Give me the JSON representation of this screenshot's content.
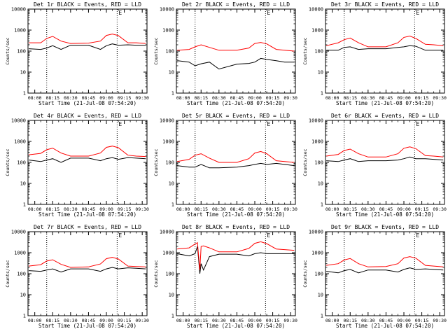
{
  "colors": {
    "events": "#000000",
    "lld": "#ff0000",
    "axes": "#000000",
    "background": "#ffffff"
  },
  "x_ticks": [
    "08:00",
    "08:15",
    "08:30",
    "08:45",
    "09:00",
    "09:15",
    "09:30"
  ],
  "x_label": "Start Time (21-Jul-08 07:54:20)",
  "y_label": "Counts/sec",
  "y_ticks": [
    "1",
    "10",
    "100",
    "1000",
    "10000"
  ],
  "chart_data": [
    {
      "type": "line",
      "title": "Det 1r BLACK = Events, RED = LLD",
      "corner_flag": "E",
      "xlim": [
        "07:54:20",
        "09:34:00"
      ],
      "ylim": [
        1,
        10000
      ],
      "yscale": "log",
      "markers": [
        "08:10",
        "09:09"
      ],
      "x": [
        "07:55",
        "08:05",
        "08:10",
        "08:15",
        "08:22",
        "08:30",
        "08:45",
        "08:55",
        "09:00",
        "09:05",
        "09:10",
        "09:18",
        "09:25",
        "09:33"
      ],
      "series": [
        {
          "name": "BLACK = Events",
          "values": [
            130,
            120,
            140,
            180,
            120,
            190,
            190,
            120,
            180,
            220,
            190,
            200,
            190,
            190
          ]
        },
        {
          "name": "RED = LLD",
          "values": [
            250,
            250,
            400,
            500,
            300,
            230,
            240,
            300,
            560,
            650,
            550,
            250,
            250,
            230
          ]
        }
      ]
    },
    {
      "type": "line",
      "title": "Det 2r BLACK = Events, RED = LLD",
      "corner_flag": "E",
      "xlim": [
        "07:54:20",
        "09:34:00"
      ],
      "ylim": [
        1,
        10000
      ],
      "yscale": "log",
      "markers": [
        "08:10",
        "09:09"
      ],
      "x": [
        "07:55",
        "08:05",
        "08:10",
        "08:15",
        "08:22",
        "08:30",
        "08:45",
        "08:55",
        "09:00",
        "09:05",
        "09:10",
        "09:18",
        "09:25",
        "09:33"
      ],
      "series": [
        {
          "name": "BLACK = Events",
          "values": [
            35,
            30,
            20,
            25,
            30,
            14,
            24,
            26,
            30,
            45,
            40,
            35,
            30,
            30
          ]
        },
        {
          "name": "RED = LLD",
          "values": [
            110,
            120,
            160,
            200,
            150,
            110,
            110,
            140,
            230,
            260,
            220,
            120,
            110,
            100
          ]
        }
      ]
    },
    {
      "type": "line",
      "title": "Det 3r BLACK = Events, RED = LLD",
      "corner_flag": "E",
      "xlim": [
        "07:54:20",
        "09:34:00"
      ],
      "ylim": [
        1,
        10000
      ],
      "yscale": "log",
      "markers": [
        "08:10",
        "09:09"
      ],
      "x": [
        "07:55",
        "08:05",
        "08:10",
        "08:15",
        "08:22",
        "08:30",
        "08:45",
        "08:55",
        "09:00",
        "09:05",
        "09:10",
        "09:18",
        "09:25",
        "09:33"
      ],
      "series": [
        {
          "name": "BLACK = Events",
          "values": [
            110,
            110,
            150,
            160,
            120,
            130,
            130,
            150,
            160,
            180,
            170,
            110,
            110,
            110
          ]
        },
        {
          "name": "RED = LLD",
          "values": [
            180,
            250,
            350,
            420,
            250,
            160,
            160,
            250,
            450,
            520,
            400,
            210,
            200,
            180
          ]
        }
      ]
    },
    {
      "type": "line",
      "title": "Det 4r BLACK = Events, RED = LLD",
      "corner_flag": "E",
      "xlim": [
        "07:54:20",
        "09:34:00"
      ],
      "ylim": [
        1,
        10000
      ],
      "yscale": "log",
      "markers": [
        "08:10",
        "09:09"
      ],
      "x": [
        "07:55",
        "08:05",
        "08:10",
        "08:15",
        "08:22",
        "08:30",
        "08:45",
        "08:55",
        "09:00",
        "09:05",
        "09:10",
        "09:18",
        "09:25",
        "09:33"
      ],
      "series": [
        {
          "name": "BLACK = Events",
          "values": [
            130,
            110,
            130,
            150,
            100,
            160,
            160,
            120,
            150,
            170,
            140,
            170,
            160,
            150
          ]
        },
        {
          "name": "RED = LLD",
          "values": [
            230,
            270,
            400,
            480,
            280,
            200,
            200,
            280,
            520,
            600,
            500,
            220,
            200,
            190
          ]
        }
      ]
    },
    {
      "type": "line",
      "title": "Det 5r BLACK = Events, RED = LLD",
      "corner_flag": "E",
      "xlim": [
        "07:54:20",
        "09:34:00"
      ],
      "ylim": [
        1,
        10000
      ],
      "yscale": "log",
      "markers": [
        "08:10",
        "09:09"
      ],
      "x": [
        "07:55",
        "08:05",
        "08:10",
        "08:15",
        "08:22",
        "08:30",
        "08:45",
        "08:55",
        "09:00",
        "09:05",
        "09:10",
        "09:18",
        "09:25",
        "09:33"
      ],
      "series": [
        {
          "name": "BLACK = Events",
          "values": [
            70,
            60,
            60,
            80,
            55,
            55,
            60,
            70,
            80,
            90,
            80,
            90,
            80,
            70
          ]
        },
        {
          "name": "RED = LLD",
          "values": [
            110,
            140,
            220,
            260,
            160,
            100,
            100,
            150,
            280,
            330,
            260,
            120,
            110,
            100
          ]
        }
      ]
    },
    {
      "type": "line",
      "title": "Det 6r BLACK = Events, RED = LLD",
      "corner_flag": "E",
      "xlim": [
        "07:54:20",
        "09:34:00"
      ],
      "ylim": [
        1,
        10000
      ],
      "yscale": "log",
      "markers": [
        "08:10",
        "09:09"
      ],
      "x": [
        "07:55",
        "08:05",
        "08:10",
        "08:15",
        "08:22",
        "08:30",
        "08:45",
        "08:55",
        "09:00",
        "09:05",
        "09:10",
        "09:18",
        "09:25",
        "09:33"
      ],
      "series": [
        {
          "name": "BLACK = Events",
          "values": [
            120,
            110,
            130,
            150,
            110,
            120,
            120,
            130,
            150,
            180,
            150,
            150,
            140,
            130
          ]
        },
        {
          "name": "RED = LLD",
          "values": [
            200,
            240,
            370,
            430,
            260,
            180,
            180,
            260,
            470,
            550,
            450,
            210,
            200,
            180
          ]
        }
      ]
    },
    {
      "type": "line",
      "title": "Det 7r BLACK = Events, RED = LLD",
      "corner_flag": "E",
      "xlim": [
        "07:54:20",
        "09:34:00"
      ],
      "ylim": [
        1,
        10000
      ],
      "yscale": "log",
      "markers": [
        "08:10",
        "09:09"
      ],
      "x": [
        "07:55",
        "08:05",
        "08:10",
        "08:15",
        "08:22",
        "08:30",
        "08:45",
        "08:55",
        "09:00",
        "09:05",
        "09:10",
        "09:18",
        "09:25",
        "09:33"
      ],
      "series": [
        {
          "name": "BLACK = Events",
          "values": [
            140,
            130,
            150,
            170,
            120,
            170,
            170,
            130,
            170,
            200,
            170,
            190,
            180,
            170
          ]
        },
        {
          "name": "RED = LLD",
          "values": [
            230,
            270,
            400,
            460,
            280,
            200,
            210,
            290,
            520,
            600,
            500,
            230,
            220,
            210
          ]
        }
      ]
    },
    {
      "type": "line",
      "title": "Det 8r BLACK = Events, RED = LLD",
      "corner_flag": "E",
      "xlim": [
        "07:54:20",
        "09:34:00"
      ],
      "ylim": [
        1,
        10000
      ],
      "yscale": "log",
      "markers": [
        "08:10",
        "09:09"
      ],
      "x": [
        "07:55",
        "08:05",
        "08:10",
        "08:12",
        "08:14",
        "08:15",
        "08:17",
        "08:22",
        "08:30",
        "08:45",
        "08:55",
        "09:00",
        "09:05",
        "09:10",
        "09:18",
        "09:25",
        "09:33"
      ],
      "series": [
        {
          "name": "BLACK = Events",
          "values": [
            900,
            700,
            900,
            2000,
            100,
            300,
            150,
            650,
            850,
            850,
            700,
            900,
            1000,
            900,
            900,
            900,
            900
          ]
        },
        {
          "name": "RED = LLD",
          "values": [
            1500,
            1700,
            2600,
            3000,
            150,
            2000,
            2100,
            1700,
            1100,
            1100,
            1600,
            2800,
            3300,
            2700,
            1500,
            1400,
            1300
          ]
        }
      ]
    },
    {
      "type": "line",
      "title": "Det 9r BLACK = Events, RED = LLD",
      "corner_flag": "E",
      "xlim": [
        "07:54:20",
        "09:34:00"
      ],
      "ylim": [
        1,
        10000
      ],
      "yscale": "log",
      "markers": [
        "08:10",
        "09:09"
      ],
      "x": [
        "07:55",
        "08:05",
        "08:10",
        "08:15",
        "08:22",
        "08:30",
        "08:45",
        "08:55",
        "09:00",
        "09:05",
        "09:10",
        "09:18",
        "09:25",
        "09:33"
      ],
      "series": [
        {
          "name": "BLACK = Events",
          "values": [
            130,
            110,
            140,
            160,
            110,
            150,
            150,
            120,
            160,
            190,
            160,
            170,
            160,
            150
          ]
        },
        {
          "name": "RED = LLD",
          "values": [
            250,
            300,
            450,
            530,
            300,
            210,
            220,
            300,
            560,
            650,
            550,
            250,
            230,
            210
          ]
        }
      ]
    }
  ]
}
